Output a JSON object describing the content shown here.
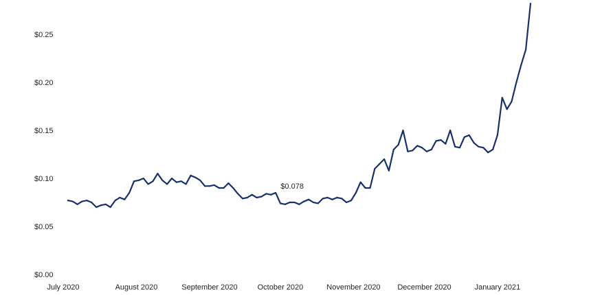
{
  "chart_data": {
    "type": "line",
    "title": "",
    "xlabel": "",
    "ylabel": "",
    "grid": false,
    "legend": "none",
    "color": "#16306b",
    "ylim": [
      0,
      0.28
    ],
    "y_ticks": [
      0.0,
      0.05,
      0.1,
      0.15,
      0.2,
      0.25
    ],
    "y_tick_labels": [
      "$0.00",
      "$0.05",
      "$0.10",
      "$0.15",
      "$0.20",
      "$0.25"
    ],
    "x_ticks": [
      0,
      31,
      62,
      92,
      123,
      153,
      184
    ],
    "x_tick_labels": [
      "July 2020",
      "August 2020",
      "September 2020",
      "October 2020",
      "November 2020",
      "December 2020",
      "January 2021"
    ],
    "annotation": {
      "label": "$0.078",
      "x": 97,
      "y": 0.078
    },
    "series": [
      {
        "x": [
          2,
          4,
          6,
          8,
          10,
          12,
          14,
          16,
          18,
          20,
          22,
          24,
          26,
          28,
          30,
          32,
          34,
          36,
          38,
          40,
          42,
          44,
          46,
          48,
          50,
          52,
          54,
          56,
          58,
          60,
          62,
          64,
          66,
          68,
          70,
          72,
          74,
          76,
          78,
          80,
          82,
          84,
          86,
          88,
          90,
          92,
          94,
          96,
          98,
          100,
          102,
          104,
          106,
          108,
          110,
          112,
          114,
          116,
          118,
          120,
          122,
          124,
          126,
          128,
          130,
          132,
          134,
          136,
          138,
          140,
          142,
          144,
          146,
          148,
          150,
          152,
          154,
          156,
          158,
          160,
          162,
          164,
          166,
          168,
          170,
          172,
          174,
          176,
          178,
          180,
          182,
          184,
          186,
          188,
          190,
          192,
          194,
          196,
          198
        ],
        "y": [
          0.077,
          0.076,
          0.073,
          0.076,
          0.077,
          0.075,
          0.07,
          0.072,
          0.073,
          0.07,
          0.077,
          0.08,
          0.078,
          0.085,
          0.097,
          0.098,
          0.1,
          0.094,
          0.097,
          0.105,
          0.098,
          0.094,
          0.1,
          0.096,
          0.097,
          0.094,
          0.103,
          0.101,
          0.098,
          0.092,
          0.092,
          0.093,
          0.09,
          0.09,
          0.095,
          0.09,
          0.084,
          0.079,
          0.08,
          0.083,
          0.08,
          0.081,
          0.084,
          0.083,
          0.085,
          0.074,
          0.073,
          0.075,
          0.075,
          0.073,
          0.076,
          0.078,
          0.075,
          0.074,
          0.079,
          0.08,
          0.078,
          0.08,
          0.079,
          0.075,
          0.077,
          0.085,
          0.096,
          0.09,
          0.09,
          0.11,
          0.115,
          0.12,
          0.108,
          0.13,
          0.135,
          0.15,
          0.128,
          0.129,
          0.134,
          0.132,
          0.128,
          0.13,
          0.139,
          0.14,
          0.136,
          0.15,
          0.133,
          0.132,
          0.143,
          0.145,
          0.137,
          0.133,
          0.132,
          0.127,
          0.13,
          0.145,
          0.184,
          0.172,
          0.18,
          0.2,
          0.218,
          0.234,
          0.282
        ]
      }
    ]
  }
}
